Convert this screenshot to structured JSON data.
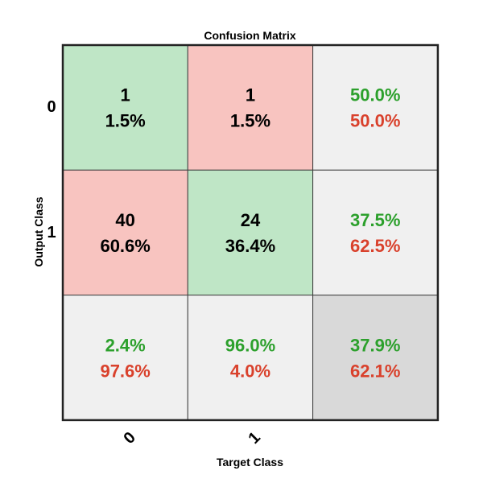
{
  "chart_data": {
    "type": "heatmap",
    "title": "Confusion Matrix",
    "xlabel": "Target Class",
    "ylabel": "Output Class",
    "row_labels": [
      "0",
      "1"
    ],
    "col_labels": [
      "0",
      "1"
    ],
    "cells": [
      [
        {
          "count": "1",
          "percent": "1.5%"
        },
        {
          "count": "1",
          "percent": "1.5%"
        }
      ],
      [
        {
          "count": "40",
          "percent": "60.6%"
        },
        {
          "count": "24",
          "percent": "36.4%"
        }
      ]
    ],
    "row_summary": [
      {
        "correct": "50.0%",
        "wrong": "50.0%"
      },
      {
        "correct": "37.5%",
        "wrong": "62.5%"
      }
    ],
    "col_summary": [
      {
        "correct": "2.4%",
        "wrong": "97.6%"
      },
      {
        "correct": "96.0%",
        "wrong": "4.0%"
      }
    ],
    "total_summary": {
      "correct": "37.9%",
      "wrong": "62.1%"
    },
    "colors": {
      "correct_cell": "#bfe6c6",
      "incorrect_cell": "#f8c4c0",
      "summary_cell": "#f0f0f0",
      "total_cell": "#d9d9d9",
      "correct_text": "#2ca02c",
      "wrong_text": "#d9412c",
      "grid": "#404040"
    }
  }
}
